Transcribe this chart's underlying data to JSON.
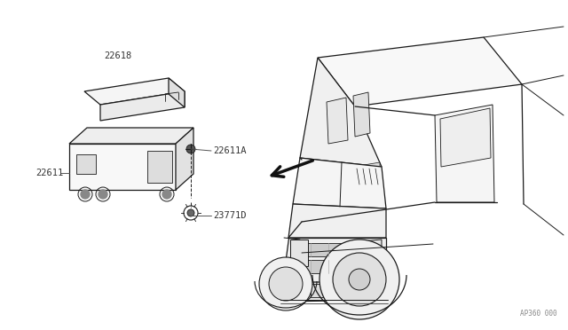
{
  "bg_color": "#ffffff",
  "line_color": "#1a1a1a",
  "label_color": "#333333",
  "fig_width": 6.4,
  "fig_height": 3.72,
  "dpi": 100,
  "diagram_code": "AP360 000"
}
